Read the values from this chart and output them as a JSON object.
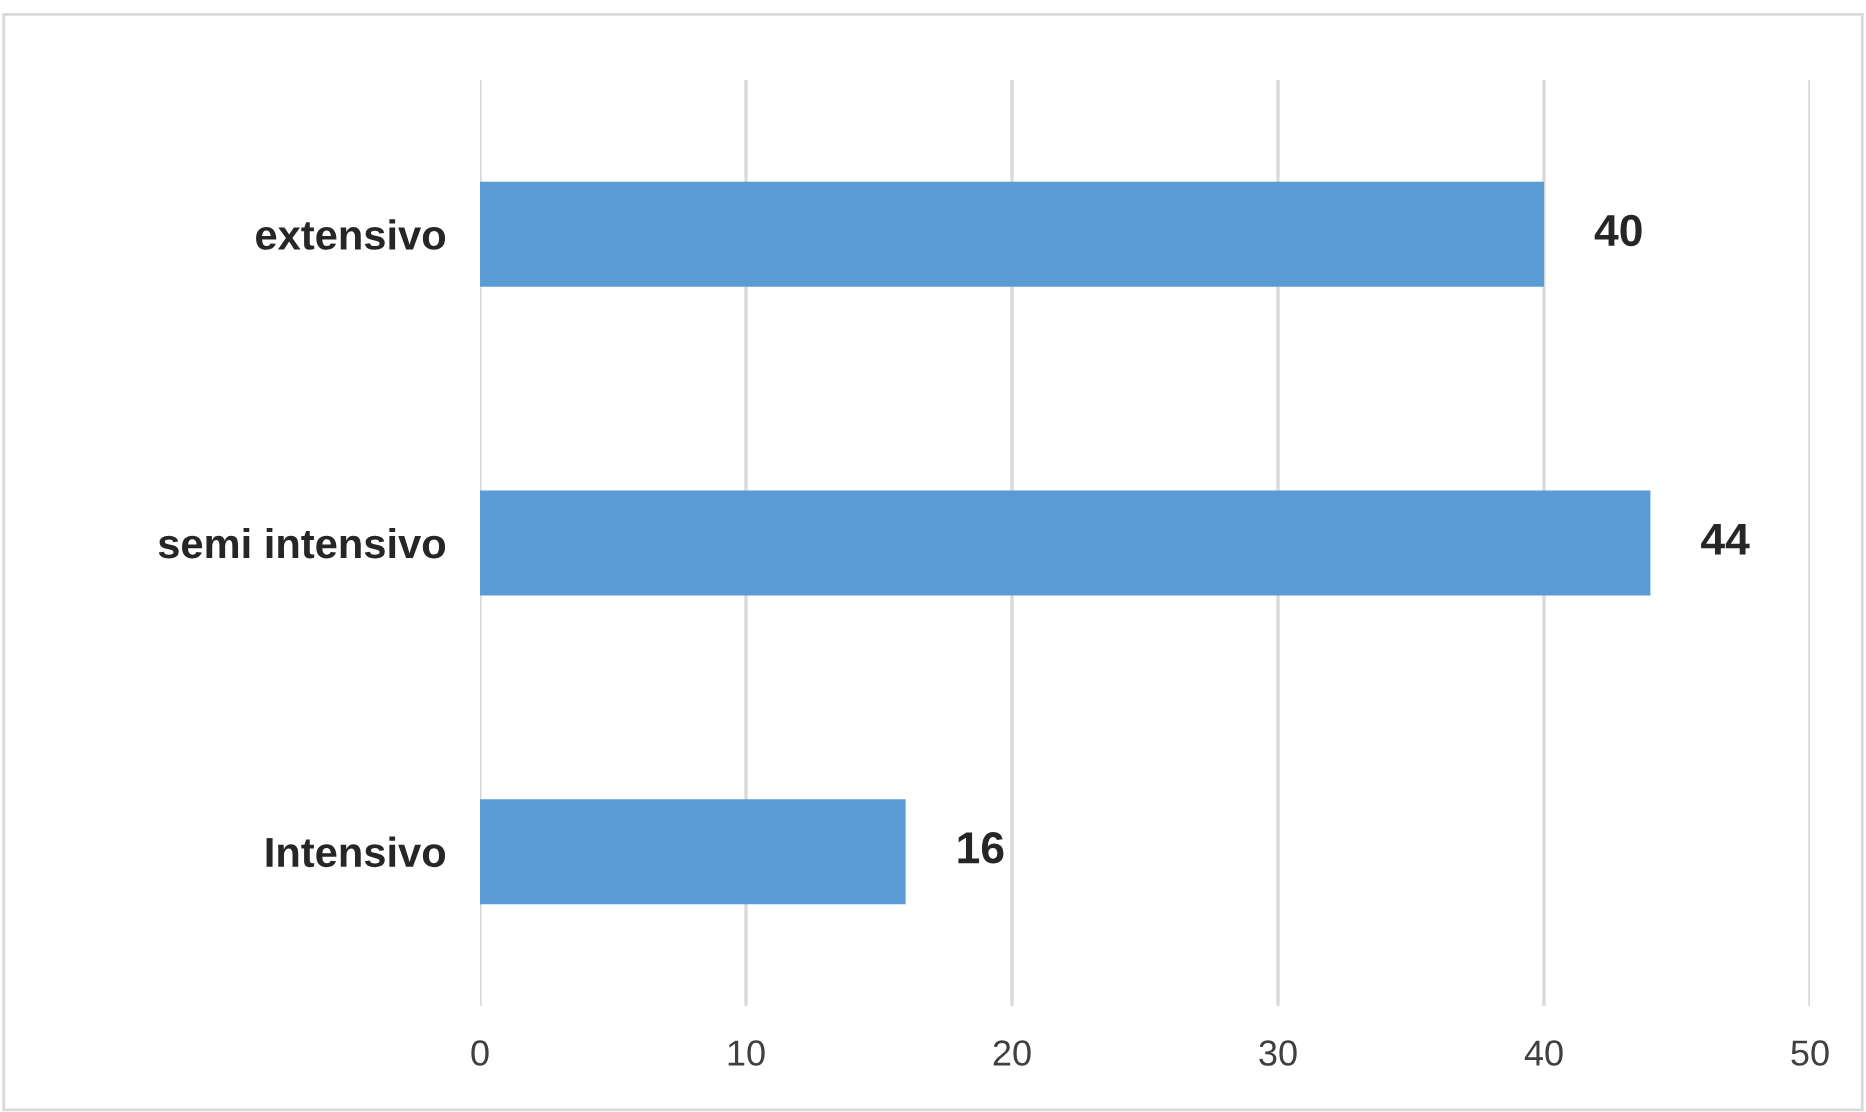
{
  "chart_data": {
    "type": "bar",
    "orientation": "horizontal",
    "categories": [
      "extensivo",
      "semi intensivo",
      "Intensivo"
    ],
    "values": [
      40,
      44,
      16
    ],
    "color": "#5b9bd5",
    "xlim": [
      0,
      50
    ],
    "xticks": [
      0,
      10,
      20,
      30,
      40,
      50
    ],
    "grid": "x",
    "data_labels": true
  }
}
